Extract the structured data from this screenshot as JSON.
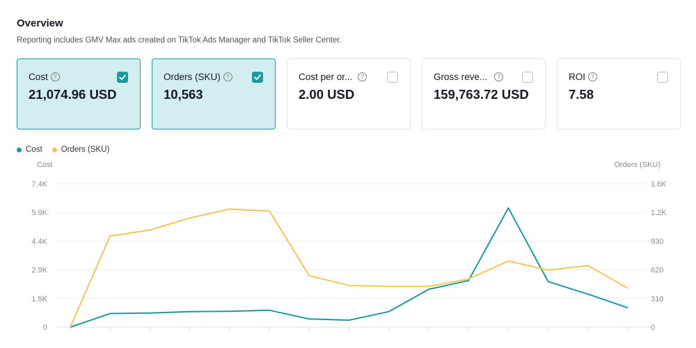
{
  "header": {
    "title": "Overview",
    "subtitle": "Reporting includes GMV Max ads created on TikTok Ads Manager and TikTok Seller Center."
  },
  "metrics": [
    {
      "label": "Cost",
      "value": "21,074.96 USD",
      "selected": true
    },
    {
      "label": "Orders (SKU)",
      "value": "10,563",
      "selected": true
    },
    {
      "label": "Cost per or...",
      "value": "2.00 USD",
      "selected": false
    },
    {
      "label": "Gross reve...",
      "value": "159,763.72 USD",
      "selected": false
    },
    {
      "label": "ROI",
      "value": "7.58",
      "selected": false
    }
  ],
  "icons": {
    "help": "question-circle-icon",
    "check": "checkmark-icon"
  },
  "colors": {
    "cost": "#1b999c",
    "orders": "#f2c55c",
    "selected_card_bg": "#d3eef0",
    "selected_card_border": "#1b999c"
  },
  "chart_data": {
    "type": "line",
    "legend_position": "top-left",
    "grid": true,
    "left_axis": {
      "label": "Cost",
      "ticks": [
        "0",
        "1.5K",
        "2.9K",
        "4.4K",
        "5.9K",
        "7.4K"
      ],
      "range": [
        0,
        7400
      ]
    },
    "right_axis": {
      "label": "Orders (SKU)",
      "ticks": [
        "0",
        "310",
        "620",
        "930",
        "1.2K",
        "1.6K"
      ],
      "range": [
        0,
        1550
      ]
    },
    "x_count": 15,
    "series": [
      {
        "name": "Cost",
        "axis": "left",
        "values": [
          0,
          700,
          730,
          800,
          820,
          870,
          420,
          360,
          800,
          1950,
          2400,
          6150,
          2350,
          1700,
          1000
        ]
      },
      {
        "name": "Orders (SKU)",
        "axis": "right",
        "values": [
          0,
          985,
          1050,
          1180,
          1275,
          1255,
          555,
          450,
          440,
          440,
          520,
          715,
          615,
          665,
          420
        ]
      }
    ]
  }
}
